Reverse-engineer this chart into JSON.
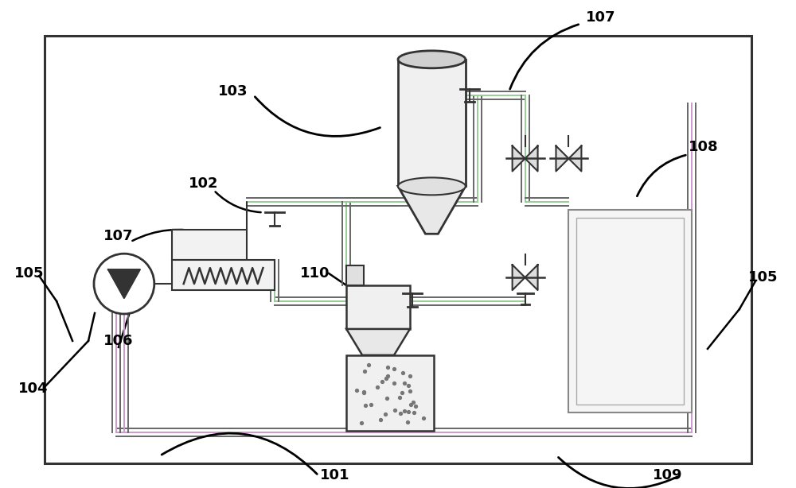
{
  "bg": "#ffffff",
  "lc": "#333333",
  "gc": "#7aaa7a",
  "pc": "#aa88aa",
  "figsize": [
    10.0,
    6.14
  ],
  "dpi": 100
}
